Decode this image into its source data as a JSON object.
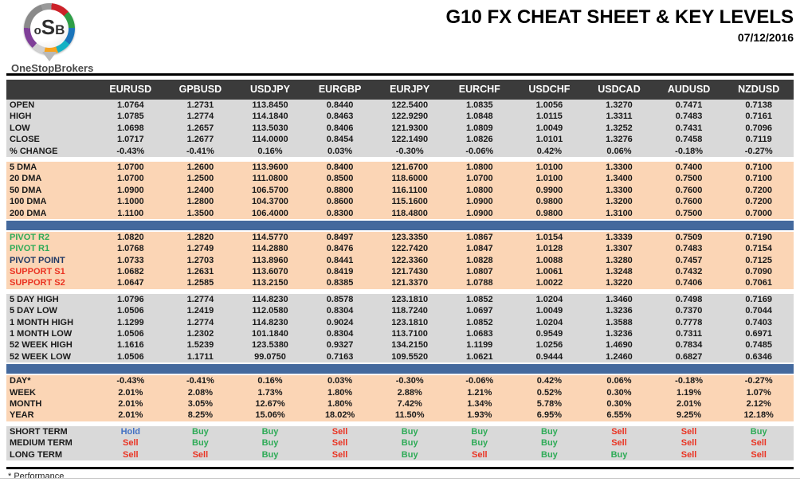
{
  "header": {
    "logo": {
      "o": "o",
      "s": "S",
      "b": "B",
      "brand": "OneStopBrokers"
    },
    "title": "G10 FX CHEAT SHEET & KEY LEVELS",
    "date": "07/12/2016"
  },
  "footer": {
    "note": "* Performance"
  },
  "colors": {
    "header_bg": "#3b3b3b",
    "gray_row_bg": "#d9d9d9",
    "peach_row_bg": "#fbd5b5",
    "divider_blue": "#44699d",
    "buy_green": "#2eab57",
    "sell_red": "#ea3423",
    "hold_blue": "#4472c4",
    "pivot_navy": "#203864",
    "text_dark": "#1a1a1a"
  },
  "chart_data": {
    "type": "table",
    "title": "G10 FX CHEAT SHEET & KEY LEVELS",
    "columns": [
      "EURUSD",
      "GPBUSD",
      "USDJPY",
      "EURGBP",
      "EURJPY",
      "EURCHF",
      "USDCHF",
      "USDCAD",
      "AUDUSD",
      "NZDUSD"
    ]
  },
  "table": {
    "columns": [
      "EURUSD",
      "GPBUSD",
      "USDJPY",
      "EURGBP",
      "EURJPY",
      "EURCHF",
      "USDCHF",
      "USDCAD",
      "AUDUSD",
      "NZDUSD"
    ],
    "sections": [
      {
        "type": "rows",
        "id": "ohlc",
        "bg": "gray",
        "gap_before": false,
        "rows": [
          {
            "label": "OPEN",
            "values": [
              "1.0764",
              "1.2731",
              "113.8450",
              "0.8440",
              "122.5400",
              "1.0835",
              "1.0056",
              "1.3270",
              "0.7471",
              "0.7138"
            ]
          },
          {
            "label": "HIGH",
            "values": [
              "1.0785",
              "1.2774",
              "114.1840",
              "0.8463",
              "122.9290",
              "1.0848",
              "1.0115",
              "1.3311",
              "0.7483",
              "0.7161"
            ]
          },
          {
            "label": "LOW",
            "values": [
              "1.0698",
              "1.2657",
              "113.5030",
              "0.8406",
              "121.9300",
              "1.0809",
              "1.0049",
              "1.3252",
              "0.7431",
              "0.7096"
            ]
          },
          {
            "label": "CLOSE",
            "values": [
              "1.0717",
              "1.2677",
              "114.0000",
              "0.8454",
              "122.1490",
              "1.0826",
              "1.0101",
              "1.3276",
              "0.7458",
              "0.7119"
            ]
          },
          {
            "label": "% CHANGE",
            "values": [
              "-0.43%",
              "-0.41%",
              "0.16%",
              "0.03%",
              "-0.30%",
              "-0.06%",
              "0.42%",
              "0.06%",
              "-0.18%",
              "-0.27%"
            ]
          }
        ]
      },
      {
        "type": "rows",
        "id": "dma",
        "bg": "peach",
        "gap_before": true,
        "rows": [
          {
            "label": "5 DMA",
            "values": [
              "1.0700",
              "1.2600",
              "113.9600",
              "0.8400",
              "121.6700",
              "1.0800",
              "1.0100",
              "1.3300",
              "0.7400",
              "0.7100"
            ]
          },
          {
            "label": "20 DMA",
            "values": [
              "1.0700",
              "1.2500",
              "111.0800",
              "0.8500",
              "118.6000",
              "1.0700",
              "1.0100",
              "1.3400",
              "0.7500",
              "0.7100"
            ]
          },
          {
            "label": "50 DMA",
            "values": [
              "1.0900",
              "1.2400",
              "106.5700",
              "0.8800",
              "116.1100",
              "1.0800",
              "0.9900",
              "1.3300",
              "0.7600",
              "0.7200"
            ]
          },
          {
            "label": "100 DMA",
            "values": [
              "1.1000",
              "1.2800",
              "104.3700",
              "0.8600",
              "115.1600",
              "1.0900",
              "0.9800",
              "1.3200",
              "0.7600",
              "0.7200"
            ]
          },
          {
            "label": "200 DMA",
            "values": [
              "1.1100",
              "1.3500",
              "106.4000",
              "0.8300",
              "118.4800",
              "1.0900",
              "0.9800",
              "1.3100",
              "0.7500",
              "0.7000"
            ]
          }
        ]
      },
      {
        "type": "divider"
      },
      {
        "type": "rows",
        "id": "pivots",
        "bg": "peach",
        "gap_before": false,
        "rows": [
          {
            "label": "PIVOT R2",
            "label_color": "green",
            "values": [
              "1.0820",
              "1.2820",
              "114.5770",
              "0.8497",
              "123.3350",
              "1.0867",
              "1.0154",
              "1.3339",
              "0.7509",
              "0.7190"
            ]
          },
          {
            "label": "PIVOT R1",
            "label_color": "green",
            "values": [
              "1.0768",
              "1.2749",
              "114.2880",
              "0.8476",
              "122.7420",
              "1.0847",
              "1.0128",
              "1.3307",
              "0.7483",
              "0.7154"
            ]
          },
          {
            "label": "PIVOT POINT",
            "label_color": "navy",
            "values": [
              "1.0733",
              "1.2703",
              "113.8960",
              "0.8441",
              "122.3360",
              "1.0828",
              "1.0088",
              "1.3280",
              "0.7457",
              "0.7125"
            ]
          },
          {
            "label": "SUPPORT S1",
            "label_color": "red",
            "values": [
              "1.0682",
              "1.2631",
              "113.6070",
              "0.8419",
              "121.7430",
              "1.0807",
              "1.0061",
              "1.3248",
              "0.7432",
              "0.7090"
            ]
          },
          {
            "label": "SUPPORT S2",
            "label_color": "red",
            "values": [
              "1.0647",
              "1.2585",
              "113.2150",
              "0.8385",
              "121.3370",
              "1.0788",
              "1.0022",
              "1.3220",
              "0.7406",
              "0.7061"
            ]
          }
        ]
      },
      {
        "type": "rows",
        "id": "ranges",
        "bg": "gray",
        "gap_before": true,
        "rows": [
          {
            "label": "5 DAY HIGH",
            "values": [
              "1.0796",
              "1.2774",
              "114.8230",
              "0.8578",
              "123.1810",
              "1.0852",
              "1.0204",
              "1.3460",
              "0.7498",
              "0.7169"
            ]
          },
          {
            "label": "5 DAY LOW",
            "values": [
              "1.0506",
              "1.2419",
              "112.0580",
              "0.8304",
              "118.7240",
              "1.0697",
              "1.0049",
              "1.3236",
              "0.7370",
              "0.7044"
            ]
          },
          {
            "label": "1 MONTH HIGH",
            "values": [
              "1.1299",
              "1.2774",
              "114.8230",
              "0.9024",
              "123.1810",
              "1.0852",
              "1.0204",
              "1.3588",
              "0.7778",
              "0.7403"
            ]
          },
          {
            "label": "1 MONTH LOW",
            "values": [
              "1.0506",
              "1.2302",
              "101.1840",
              "0.8304",
              "113.7100",
              "1.0683",
              "0.9549",
              "1.3236",
              "0.7311",
              "0.6971"
            ]
          },
          {
            "label": "52 WEEK HIGH",
            "values": [
              "1.1616",
              "1.5239",
              "123.5380",
              "0.9327",
              "134.2150",
              "1.1199",
              "1.0256",
              "1.4690",
              "0.7834",
              "0.7485"
            ]
          },
          {
            "label": "52 WEEK LOW",
            "values": [
              "1.0506",
              "1.1711",
              "99.0750",
              "0.7163",
              "109.5520",
              "1.0621",
              "0.9444",
              "1.2460",
              "0.6827",
              "0.6346"
            ]
          }
        ]
      },
      {
        "type": "divider"
      },
      {
        "type": "rows",
        "id": "performance",
        "bg": "peach",
        "gap_before": false,
        "rows": [
          {
            "label": "DAY*",
            "values": [
              "-0.43%",
              "-0.41%",
              "0.16%",
              "0.03%",
              "-0.30%",
              "-0.06%",
              "0.42%",
              "0.06%",
              "-0.18%",
              "-0.27%"
            ]
          },
          {
            "label": "WEEK",
            "values": [
              "2.01%",
              "2.08%",
              "1.73%",
              "1.80%",
              "2.88%",
              "1.21%",
              "0.52%",
              "0.30%",
              "1.19%",
              "1.07%"
            ]
          },
          {
            "label": "MONTH",
            "values": [
              "2.01%",
              "3.05%",
              "12.67%",
              "1.80%",
              "7.42%",
              "1.34%",
              "5.78%",
              "0.30%",
              "2.01%",
              "2.12%"
            ]
          },
          {
            "label": "YEAR",
            "values": [
              "2.01%",
              "8.25%",
              "15.06%",
              "18.02%",
              "11.50%",
              "1.93%",
              "6.95%",
              "6.55%",
              "9.25%",
              "12.18%"
            ]
          }
        ]
      },
      {
        "type": "rows",
        "id": "trend",
        "bg": "gray",
        "gap_before": true,
        "signals": true,
        "rows": [
          {
            "label": "SHORT TERM",
            "values": [
              "Hold",
              "Buy",
              "Buy",
              "Sell",
              "Buy",
              "Buy",
              "Buy",
              "Sell",
              "Sell",
              "Buy"
            ]
          },
          {
            "label": "MEDIUM TERM",
            "values": [
              "Sell",
              "Buy",
              "Buy",
              "Sell",
              "Buy",
              "Buy",
              "Buy",
              "Sell",
              "Sell",
              "Sell"
            ]
          },
          {
            "label": "LONG TERM",
            "values": [
              "Sell",
              "Sell",
              "Buy",
              "Sell",
              "Buy",
              "Sell",
              "Buy",
              "Buy",
              "Sell",
              "Sell"
            ]
          }
        ]
      }
    ]
  }
}
